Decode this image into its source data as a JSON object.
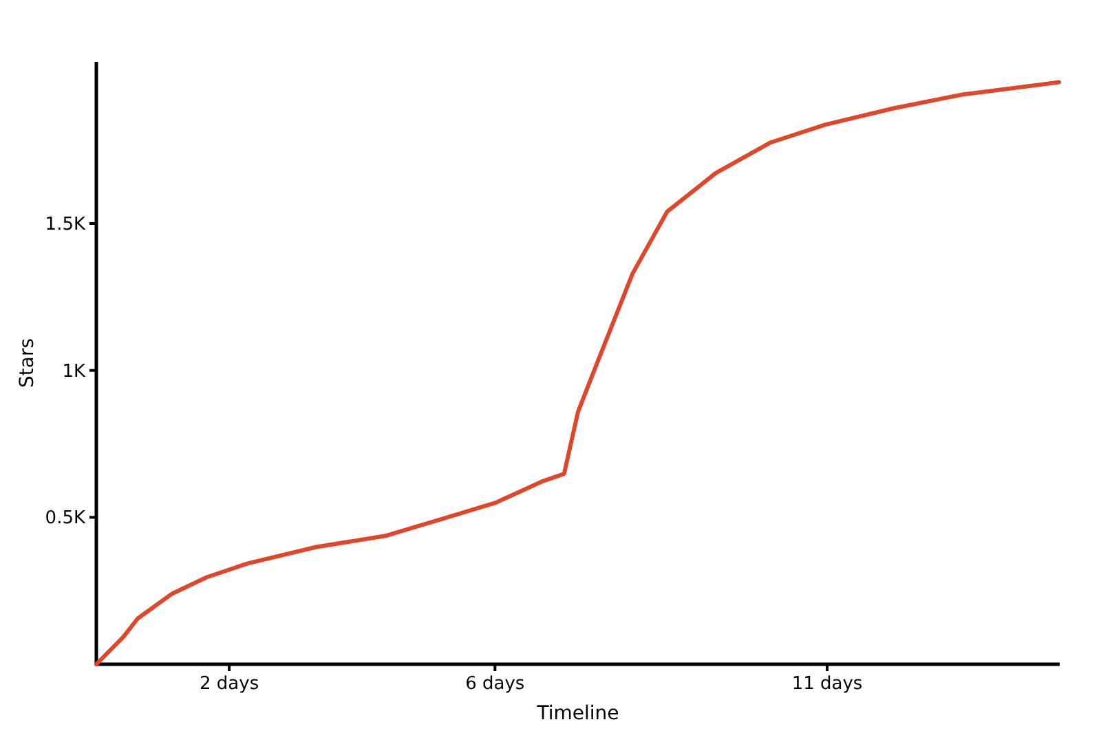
{
  "chart_data": {
    "type": "line",
    "xlabel": "Timeline",
    "ylabel": "Stars",
    "x": [
      0,
      0.41,
      0.62,
      1.14,
      1.66,
      2.28,
      3.31,
      4.35,
      5.18,
      6.0,
      6.73,
      7.04,
      7.25,
      7.56,
      8.07,
      8.59,
      9.32,
      10.14,
      10.97,
      12.0,
      13.04,
      14.49
    ],
    "series": [
      {
        "color": "#e0462a",
        "values": [
          0,
          94,
          155,
          240,
          296,
          343,
          399,
          437,
          493,
          549,
          624,
          648,
          859,
          1038,
          1329,
          1540,
          1671,
          1775,
          1836,
          1892,
          1939,
          1981
        ]
      }
    ],
    "xlim": [
      0,
      14.5
    ],
    "xticks": [
      {
        "value": 2,
        "label": "2 days"
      },
      {
        "value": 6,
        "label": "6 days"
      },
      {
        "value": 11,
        "label": "11 days"
      }
    ],
    "ylim": [
      0,
      2050
    ],
    "yticks": [
      {
        "value": 500,
        "label": "0.5K"
      },
      {
        "value": 1000,
        "label": "1K"
      },
      {
        "value": 1500,
        "label": "1.5K"
      }
    ],
    "grid": false,
    "marker": "none",
    "line_style": "solid"
  }
}
